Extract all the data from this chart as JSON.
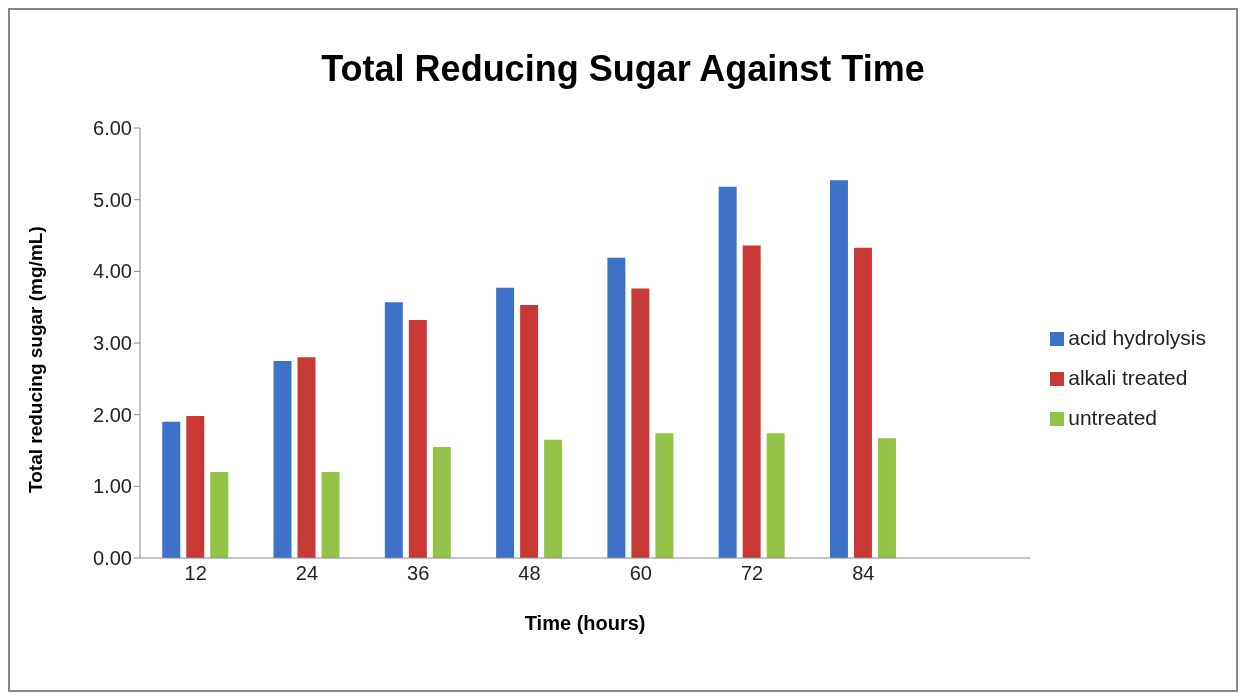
{
  "chart_data": {
    "type": "bar",
    "title": "Total Reducing Sugar Against Time",
    "xlabel": "Time (hours)",
    "ylabel": "Total reducing sugar (mg/mL)",
    "categories": [
      "12",
      "24",
      "36",
      "48",
      "60",
      "72",
      "84",
      null
    ],
    "series": [
      {
        "name": "acid hydrolysis",
        "color": "#3d72c9",
        "values": [
          1.9,
          2.75,
          3.57,
          3.77,
          4.19,
          5.18,
          5.27,
          null
        ]
      },
      {
        "name": "alkali treated",
        "color": "#c93a36",
        "values": [
          1.98,
          2.8,
          3.32,
          3.53,
          3.76,
          4.36,
          4.33,
          null
        ]
      },
      {
        "name": "untreated",
        "color": "#94c447",
        "values": [
          1.2,
          1.2,
          1.55,
          1.65,
          1.74,
          1.74,
          1.67,
          null
        ]
      }
    ],
    "ylim": [
      0,
      6
    ],
    "yticks": [
      {
        "value": 0,
        "label": "0.00"
      },
      {
        "value": 1,
        "label": "1.00"
      },
      {
        "value": 2,
        "label": "2.00"
      },
      {
        "value": 3,
        "label": "3.00"
      },
      {
        "value": 4,
        "label": "4.00"
      },
      {
        "value": 5,
        "label": "5.00"
      },
      {
        "value": 6,
        "label": "6.00"
      }
    ],
    "grid": false,
    "legend": "right"
  }
}
